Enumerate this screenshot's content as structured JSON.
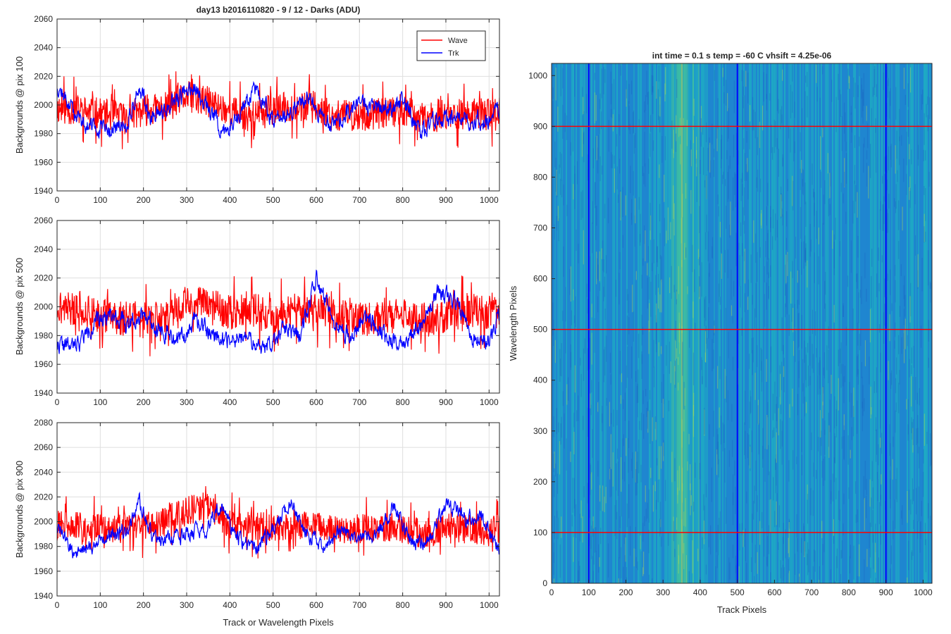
{
  "figure": {
    "title": "day13 b2016110820 - 9 / 12 - Darks (ADU)",
    "xlabel_bottom": "Track or Wavelength Pixels"
  },
  "chart_data": [
    {
      "type": "line",
      "ylabel": "Backgrounds @ pix 100",
      "xlim": [
        0,
        1024
      ],
      "ylim": [
        1940,
        2060
      ],
      "xticks": [
        0,
        100,
        200,
        300,
        400,
        500,
        600,
        700,
        800,
        900,
        1000
      ],
      "yticks": [
        1940,
        1960,
        1980,
        2000,
        2020,
        2040,
        2060
      ],
      "grid": true,
      "legend": "top-right",
      "series": [
        {
          "name": "Wave",
          "color": "#ff0000",
          "mean": 1995,
          "noise": 11,
          "seed": 11,
          "x": [
            0,
            50,
            100,
            150,
            200,
            250,
            300,
            350,
            400,
            450,
            500,
            550,
            600,
            650,
            700,
            750,
            800,
            850,
            900,
            950,
            1000,
            1024
          ],
          "y": [
            1998,
            1996,
            1994,
            1992,
            1996,
            1998,
            2006,
            2002,
            1996,
            1992,
            1997,
            1999,
            1998,
            1993,
            1992,
            1994,
            1996,
            1990,
            1994,
            1993,
            1995,
            1995
          ]
        },
        {
          "name": "Trk",
          "color": "#0000ff",
          "mean": 1992,
          "noise": 5,
          "seed": 12,
          "x": [
            0,
            40,
            80,
            120,
            160,
            190,
            220,
            260,
            310,
            350,
            390,
            420,
            460,
            500,
            540,
            580,
            620,
            660,
            700,
            760,
            800,
            840,
            880,
            920,
            960,
            1000,
            1024
          ],
          "y": [
            2014,
            1994,
            1984,
            1982,
            1986,
            2012,
            1990,
            1998,
            2014,
            1998,
            1980,
            1994,
            2010,
            1990,
            1996,
            2006,
            1988,
            1990,
            2002,
            1996,
            2004,
            1980,
            1990,
            1988,
            1990,
            1988,
            1998
          ]
        }
      ]
    },
    {
      "type": "line",
      "ylabel": "Backgrounds @ pix 500",
      "xlim": [
        0,
        1024
      ],
      "ylim": [
        1940,
        2060
      ],
      "xticks": [
        0,
        100,
        200,
        300,
        400,
        500,
        600,
        700,
        800,
        900,
        1000
      ],
      "yticks": [
        1940,
        1960,
        1980,
        2000,
        2020,
        2040,
        2060
      ],
      "grid": true,
      "series": [
        {
          "name": "Wave",
          "color": "#ff0000",
          "mean": 1995,
          "noise": 12,
          "seed": 21,
          "x": [
            0,
            50,
            100,
            150,
            200,
            250,
            300,
            350,
            400,
            450,
            500,
            550,
            600,
            650,
            700,
            750,
            800,
            850,
            900,
            950,
            1000,
            1024
          ],
          "y": [
            2000,
            1998,
            1994,
            1992,
            1990,
            1994,
            2004,
            2002,
            1996,
            1998,
            1994,
            1996,
            1998,
            1994,
            1990,
            1992,
            1994,
            1990,
            1994,
            1998,
            1996,
            1995
          ]
        },
        {
          "name": "Trk",
          "color": "#0000ff",
          "mean": 1986,
          "noise": 5,
          "seed": 22,
          "x": [
            0,
            40,
            80,
            120,
            160,
            200,
            240,
            280,
            320,
            360,
            400,
            440,
            480,
            520,
            560,
            600,
            640,
            680,
            720,
            760,
            800,
            840,
            880,
            920,
            960,
            1000,
            1024
          ],
          "y": [
            1974,
            1972,
            1986,
            1996,
            1988,
            1996,
            1984,
            1976,
            1990,
            1982,
            1976,
            1978,
            1970,
            1984,
            1980,
            2020,
            1986,
            1980,
            1994,
            1978,
            1976,
            1986,
            2010,
            2006,
            1978,
            1976,
            1996
          ]
        }
      ]
    },
    {
      "type": "line",
      "ylabel": "Backgrounds @ pix 900",
      "xlim": [
        0,
        1024
      ],
      "ylim": [
        1940,
        2080
      ],
      "xticks": [
        0,
        100,
        200,
        300,
        400,
        500,
        600,
        700,
        800,
        900,
        1000
      ],
      "yticks": [
        1940,
        1960,
        1980,
        2000,
        2020,
        2040,
        2060,
        2080
      ],
      "grid": true,
      "series": [
        {
          "name": "Wave",
          "color": "#ff0000",
          "mean": 1996,
          "noise": 12,
          "seed": 31,
          "x": [
            0,
            50,
            100,
            150,
            200,
            250,
            300,
            340,
            400,
            450,
            500,
            550,
            600,
            650,
            700,
            750,
            800,
            850,
            900,
            950,
            1000,
            1024
          ],
          "y": [
            1998,
            1996,
            1994,
            1994,
            1996,
            2000,
            2008,
            2014,
            1998,
            1996,
            1996,
            1998,
            1996,
            1994,
            1994,
            1996,
            1994,
            1990,
            1996,
            1994,
            1992,
            1994
          ]
        },
        {
          "name": "Trk",
          "color": "#0000ff",
          "mean": 1990,
          "noise": 5,
          "seed": 32,
          "x": [
            0,
            40,
            80,
            120,
            160,
            190,
            220,
            260,
            300,
            340,
            380,
            420,
            460,
            500,
            540,
            580,
            620,
            660,
            700,
            740,
            780,
            820,
            860,
            900,
            940,
            980,
            1024
          ],
          "y": [
            1996,
            1974,
            1980,
            1990,
            1992,
            2016,
            1988,
            1986,
            1990,
            1992,
            2012,
            1986,
            1978,
            1994,
            2016,
            1988,
            1980,
            1994,
            1990,
            1988,
            2014,
            1982,
            1984,
            2014,
            2004,
            2004,
            1978
          ]
        }
      ]
    },
    {
      "type": "heatmap",
      "title": "int time = 0.1 s   temp = -60 C   vhsift = 4.25e-06",
      "xlabel": "Track Pixels",
      "ylabel": "Wavelength Pixels",
      "xlim": [
        0,
        1024
      ],
      "ylim": [
        0,
        1024
      ],
      "xticks": [
        0,
        100,
        200,
        300,
        400,
        500,
        600,
        700,
        800,
        900,
        1000
      ],
      "yticks": [
        0,
        100,
        200,
        300,
        400,
        500,
        600,
        700,
        800,
        900,
        1000
      ],
      "colormap": [
        "#1a5fbf",
        "#1f86d0",
        "#1ea9c4",
        "#3ec0a0",
        "#a9d65a"
      ],
      "bright_band_center": 345,
      "vertical_markers": {
        "color": "#0000ff",
        "x": [
          100,
          500,
          900
        ]
      },
      "horizontal_markers": {
        "color": "#ff0000",
        "y": [
          100,
          500,
          900
        ]
      }
    }
  ]
}
